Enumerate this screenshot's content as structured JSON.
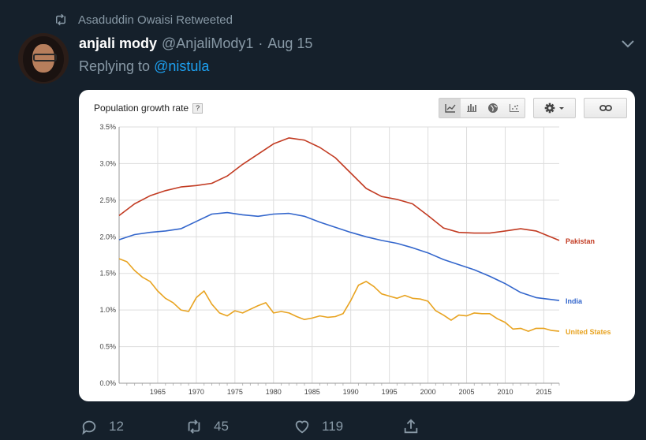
{
  "retweet": {
    "text": "Asaduddin Owaisi Retweeted"
  },
  "tweet": {
    "name": "anjali mody",
    "handle": "@AnjaliMody1",
    "separator": "·",
    "date": "Aug 15",
    "replying_prefix": "Replying to ",
    "replying_to": "@nistula"
  },
  "stats": {
    "replies": "12",
    "retweets": "45",
    "likes": "119"
  },
  "icons": {
    "retweet": "retweet-icon",
    "chevron": "chevron-down-icon",
    "reply": "reply-icon",
    "like": "heart-icon",
    "share": "share-icon",
    "line": "line-chart-icon",
    "bar": "bar-chart-icon",
    "map": "globe-icon",
    "scatter": "scatter-icon",
    "settings": "gear-icon",
    "link": "link-icon"
  },
  "colors": {
    "background": "#15202b",
    "muted": "#8899a6",
    "link": "#1da1f2",
    "pakistan": "#c23b22",
    "india": "#3366cc",
    "us": "#e8a320"
  },
  "chart_data": {
    "type": "line",
    "title": "Population growth rate",
    "help_label": "?",
    "xlim": [
      1960,
      2017
    ],
    "ylim": [
      0,
      3.5
    ],
    "ytick_values": [
      0,
      0.5,
      1.0,
      1.5,
      2.0,
      2.5,
      3.0,
      3.5
    ],
    "yticks": [
      "0.0%",
      "0.5%",
      "1.0%",
      "1.5%",
      "2.0%",
      "2.5%",
      "3.0%",
      "3.5%"
    ],
    "xtick_values": [
      1965,
      1970,
      1975,
      1980,
      1985,
      1990,
      1995,
      2000,
      2005,
      2010,
      2015
    ],
    "xticks": [
      "1965",
      "1970",
      "1975",
      "1980",
      "1985",
      "1990",
      "1995",
      "2000",
      "2005",
      "2010",
      "2015"
    ],
    "grid": true,
    "series": [
      {
        "name": "Pakistan",
        "color": "#c23b22",
        "x": [
          1960,
          1962,
          1964,
          1966,
          1968,
          1970,
          1972,
          1974,
          1976,
          1978,
          1980,
          1982,
          1984,
          1986,
          1988,
          1990,
          1992,
          1994,
          1996,
          1998,
          2000,
          2002,
          2004,
          2006,
          2008,
          2010,
          2012,
          2014,
          2017
        ],
        "y": [
          2.29,
          2.45,
          2.56,
          2.63,
          2.68,
          2.7,
          2.73,
          2.83,
          2.99,
          3.13,
          3.27,
          3.35,
          3.32,
          3.22,
          3.08,
          2.87,
          2.66,
          2.55,
          2.51,
          2.45,
          2.29,
          2.12,
          2.06,
          2.05,
          2.05,
          2.08,
          2.11,
          2.08,
          1.95
        ]
      },
      {
        "name": "India",
        "color": "#3366cc",
        "x": [
          1960,
          1962,
          1964,
          1966,
          1968,
          1970,
          1972,
          1974,
          1976,
          1978,
          1980,
          1982,
          1984,
          1986,
          1988,
          1990,
          1992,
          1994,
          1996,
          1998,
          2000,
          2002,
          2004,
          2006,
          2008,
          2010,
          2012,
          2014,
          2017
        ],
        "y": [
          1.96,
          2.03,
          2.06,
          2.08,
          2.11,
          2.21,
          2.31,
          2.33,
          2.3,
          2.28,
          2.31,
          2.32,
          2.28,
          2.2,
          2.13,
          2.06,
          2.0,
          1.95,
          1.91,
          1.85,
          1.78,
          1.69,
          1.62,
          1.55,
          1.46,
          1.36,
          1.24,
          1.17,
          1.13
        ]
      },
      {
        "name": "United States",
        "color": "#e8a320",
        "x": [
          1960,
          1961,
          1962,
          1963,
          1964,
          1965,
          1966,
          1967,
          1968,
          1969,
          1970,
          1971,
          1972,
          1973,
          1974,
          1975,
          1976,
          1977,
          1978,
          1979,
          1980,
          1981,
          1982,
          1983,
          1984,
          1985,
          1986,
          1987,
          1988,
          1989,
          1990,
          1991,
          1992,
          1993,
          1994,
          1995,
          1996,
          1997,
          1998,
          1999,
          2000,
          2001,
          2002,
          2003,
          2004,
          2005,
          2006,
          2007,
          2008,
          2009,
          2010,
          2011,
          2012,
          2013,
          2014,
          2015,
          2016,
          2017
        ],
        "y": [
          1.7,
          1.66,
          1.54,
          1.45,
          1.39,
          1.26,
          1.16,
          1.1,
          1.0,
          0.98,
          1.17,
          1.26,
          1.08,
          0.96,
          0.92,
          0.99,
          0.96,
          1.01,
          1.06,
          1.1,
          0.96,
          0.98,
          0.96,
          0.91,
          0.87,
          0.89,
          0.92,
          0.9,
          0.91,
          0.95,
          1.13,
          1.34,
          1.39,
          1.32,
          1.22,
          1.19,
          1.16,
          1.2,
          1.16,
          1.15,
          1.12,
          0.99,
          0.93,
          0.86,
          0.93,
          0.92,
          0.96,
          0.95,
          0.95,
          0.88,
          0.83,
          0.74,
          0.75,
          0.71,
          0.75,
          0.75,
          0.72,
          0.71
        ]
      }
    ]
  }
}
